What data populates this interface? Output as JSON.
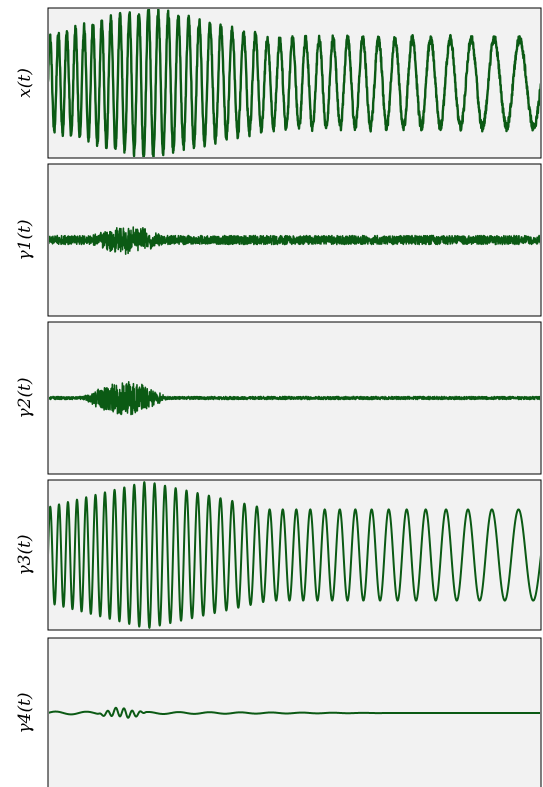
{
  "colors": {
    "signal": "#0b5a14",
    "panel_background": "#f2f2f2",
    "frame": "#000000"
  },
  "chart_data": [
    {
      "type": "line",
      "ylabel": "x(t)",
      "ylim": [
        -1.0,
        1.0
      ],
      "grid": false,
      "series": [
        {
          "signal": "chirp_plus_noise",
          "envelope": {
            "start": 0.62,
            "peak": 1.0,
            "end": 0.6
          },
          "carrier_cycles_total": 38,
          "noise_amplitude": 0.06
        }
      ]
    },
    {
      "type": "line",
      "ylabel": "γ1(t)",
      "ylim": [
        -1.0,
        1.0
      ],
      "grid": false,
      "series": [
        {
          "signal": "noise_band",
          "band_amplitude": 0.06,
          "burst": {
            "start_fraction": 0.08,
            "end_fraction": 0.24,
            "amplitude": 0.14
          }
        }
      ]
    },
    {
      "type": "line",
      "ylabel": "γ2(t)",
      "ylim": [
        -1.0,
        1.0
      ],
      "grid": false,
      "series": [
        {
          "signal": "noise_band",
          "band_amplitude": 0.02,
          "burst": {
            "start_fraction": 0.07,
            "end_fraction": 0.24,
            "amplitude": 0.22
          }
        }
      ]
    },
    {
      "type": "line",
      "ylabel": "γ3(t)",
      "ylim": [
        -1.0,
        1.0
      ],
      "grid": false,
      "series": [
        {
          "signal": "chirp",
          "envelope": {
            "start": 0.65,
            "peak": 1.0,
            "end": 0.62
          },
          "carrier_cycles_total": 36,
          "noise_amplitude": 0.0
        }
      ]
    },
    {
      "type": "line",
      "ylabel": "γ4(t)",
      "ylim": [
        -1.0,
        1.0
      ],
      "grid": false,
      "series": [
        {
          "signal": "small_wobble",
          "wobble_amplitude": 0.02,
          "burst": {
            "start_fraction": 0.1,
            "end_fraction": 0.2,
            "amplitude": 0.06
          }
        }
      ]
    }
  ]
}
